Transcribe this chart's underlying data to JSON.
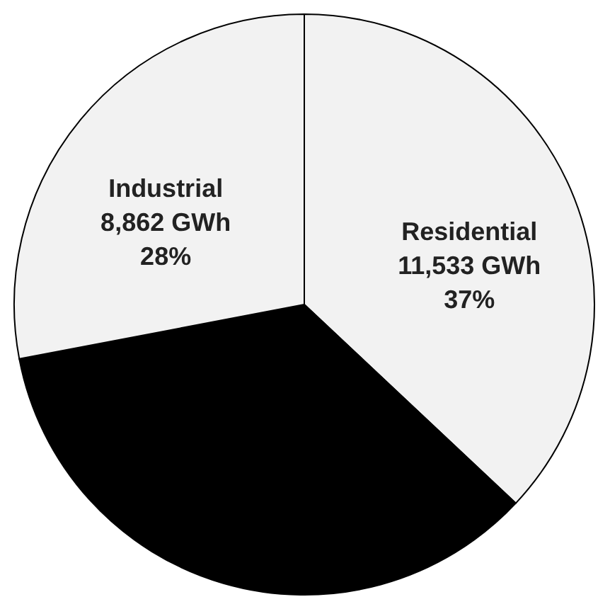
{
  "chart_data": {
    "type": "pie",
    "categories": [
      "Residential",
      null,
      "Industrial"
    ],
    "values": [
      37,
      35,
      28
    ],
    "colors": [
      "#f2f2f2",
      "#000000",
      "#f2f2f2"
    ],
    "value_labels": [
      "11,533 GWh\n37%",
      null,
      "8,862 GWh\n28%"
    ],
    "legend": false
  }
}
